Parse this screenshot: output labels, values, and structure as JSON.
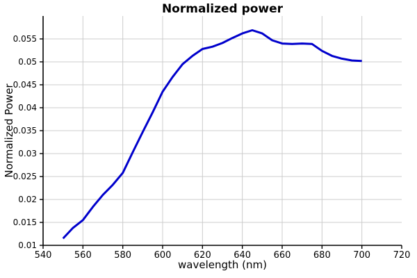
{
  "chart_data": {
    "type": "line",
    "title": "Normalized power",
    "xlabel": "wavelength (nm)",
    "ylabel": "Normalized Power",
    "xlim": [
      540,
      720
    ],
    "ylim": [
      0.01,
      0.06
    ],
    "x_ticks": [
      540,
      560,
      580,
      600,
      620,
      640,
      660,
      680,
      700,
      720
    ],
    "x_tick_labels": [
      "540",
      "560",
      "580",
      "600",
      "620",
      "640",
      "660",
      "680",
      "700",
      "720"
    ],
    "y_ticks": [
      0.01,
      0.015,
      0.02,
      0.025,
      0.03,
      0.035,
      0.04,
      0.045,
      0.05,
      0.055
    ],
    "y_tick_labels": [
      "0.01",
      "0.015",
      "0.02",
      "0.025",
      "0.03",
      "0.035",
      "0.04",
      "0.045",
      "0.05",
      "0.055"
    ],
    "x_gridlines": [
      560,
      580,
      600,
      620,
      640,
      660,
      680,
      700
    ],
    "y_gridlines": [
      0.015,
      0.02,
      0.025,
      0.03,
      0.035,
      0.04,
      0.045,
      0.05,
      0.055
    ],
    "grid": true,
    "legend": "none",
    "colors": {
      "line": "#0000cc",
      "grid": "#cccccc",
      "axis": "#000000",
      "background": "#ffffff"
    },
    "series": [
      {
        "name": "normalized power",
        "x": [
          550,
          555,
          560,
          565,
          570,
          575,
          580,
          585,
          590,
          595,
          600,
          605,
          610,
          615,
          620,
          625,
          630,
          635,
          640,
          645,
          650,
          655,
          660,
          665,
          670,
          675,
          680,
          685,
          690,
          695,
          700
        ],
        "y": [
          0.0115,
          0.0138,
          0.0155,
          0.0184,
          0.021,
          0.0232,
          0.0258,
          0.0303,
          0.0347,
          0.039,
          0.0435,
          0.0467,
          0.0495,
          0.0513,
          0.0528,
          0.0533,
          0.0541,
          0.0552,
          0.0562,
          0.0569,
          0.0562,
          0.0547,
          0.054,
          0.0539,
          0.054,
          0.0539,
          0.0524,
          0.0513,
          0.0507,
          0.0503,
          0.0502
        ]
      }
    ]
  }
}
